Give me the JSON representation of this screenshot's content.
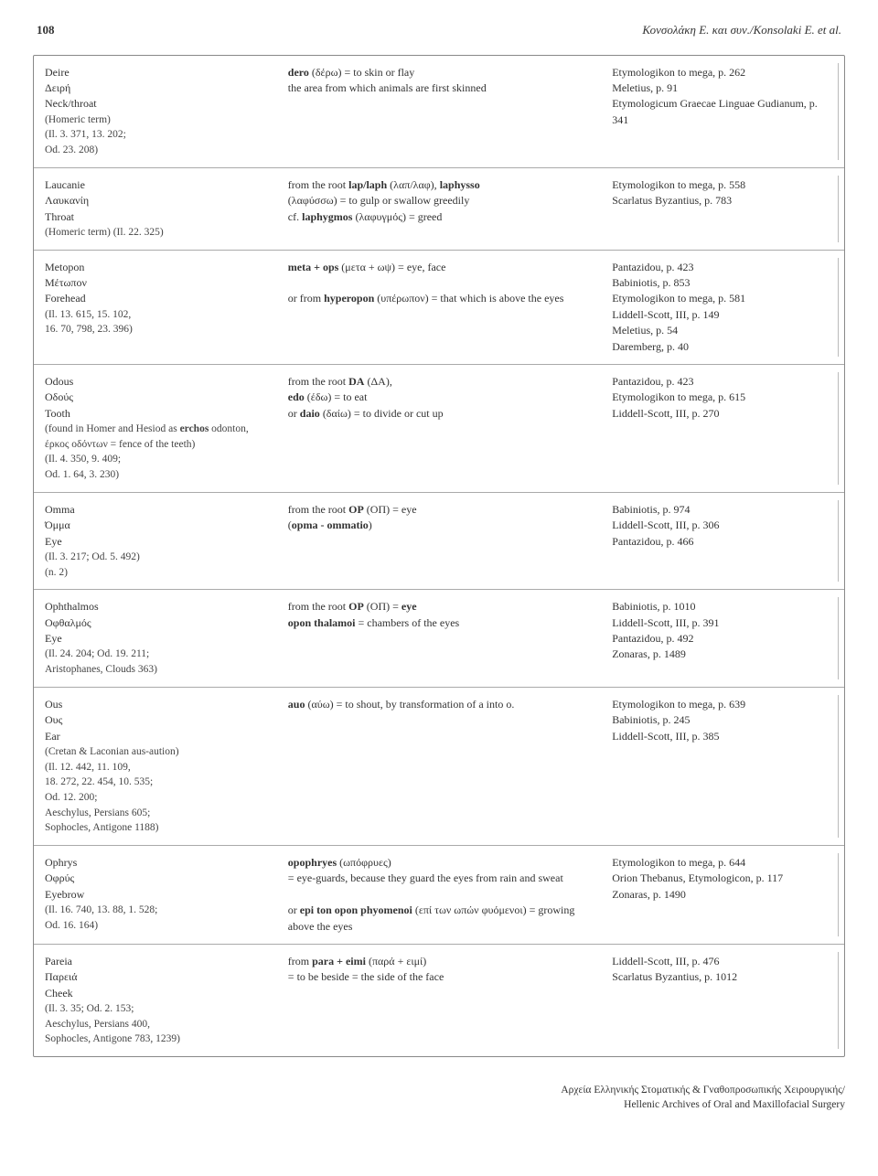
{
  "header": {
    "page_number": "108",
    "author_line": "Κονσολάκη E. και συν./Konsolaki E. et al."
  },
  "table": {
    "row_border_color": "#aaaaaa",
    "outer_border_color": "#888888",
    "font_family": "Georgia",
    "font_size_pt": 9,
    "col_widths_pct": [
      30,
      40,
      30
    ],
    "rows": [
      {
        "term_en": "Deire",
        "term_gr": "Δειρή",
        "gloss": "Neck/throat",
        "refs": "(Homeric term)\n(Il. 3. 371, 13. 202;\nOd. 23. 208)",
        "etym": "<b>dero</b> (δέρω) = to skin or flay\nthe area from which animals are first skinned",
        "sources": "Etymologikon to mega, p. 262\nMeletius, p. 91\nEtymologicum Graecae Linguae Gudianum, p. 341"
      },
      {
        "term_en": "Laucanie",
        "term_gr": "Λαυκανίη",
        "gloss": "Throat",
        "refs": "(Homeric term) (Il. 22. 325)",
        "etym": "from the root <b>lap/laph</b> (λαπ/λαφ), <b>laphysso</b>\n(λαφύσσω) = to gulp or swallow greedily\ncf. <b>laphygmos</b> (λαφυγμός) = greed",
        "sources": "Etymologikon to mega, p. 558\nScarlatus Byzantius, p. 783"
      },
      {
        "term_en": "Metopon",
        "term_gr": "Μέτωπον",
        "gloss": "Forehead",
        "refs": "(Il. 13. 615, 15. 102,\n16. 70, 798, 23. 396)",
        "etym": "<b>meta + ops</b> (μετα + ωψ) = eye, face\n\nor from <b>hyperopon</b> (υπέρωπον) = that which is above the eyes",
        "sources": "Pantazidou, p. 423\nBabiniotis, p. 853\nEtymologikon to mega, p. 581\nLiddell-Scott, III, p. 149\nMeletius, p. 54\nDaremberg, p. 40"
      },
      {
        "term_en": "Odous",
        "term_gr": "Οδούς",
        "gloss": "Tooth",
        "refs": "(found in Homer and Hesiod as <b>erchos</b> odonton, έρκος οδόντων = fence of the teeth)\n(Il. 4. 350, 9. 409;\nOd. 1. 64, 3. 230)",
        "etym": "from the root <b>DA</b> (ΔΑ),\n<b>edo</b> (έδω) = to eat\nor <b>daio</b> (δαίω) = to divide or cut up",
        "sources": "Pantazidou, p. 423\nEtymologikon to mega, p. 615\nLiddell-Scott, III, p. 270"
      },
      {
        "term_en": "Omma",
        "term_gr": "Όμμα",
        "gloss": "Eye",
        "refs": "(Il. 3. 217; Od. 5. 492)\n(n. 2)",
        "etym": "from the root <b>OP</b> (ΟΠ) = eye\n(<b>opma - ommatio</b>)",
        "sources": "Babiniotis, p. 974\nLiddell-Scott, III, p. 306\nPantazidou, p. 466"
      },
      {
        "term_en": "Ophthalmos",
        "term_gr": "Οφθαλμός",
        "gloss": "Eye",
        "refs": "(Il. 24. 204; Od. 19. 211;\nAristophanes, Clouds 363)",
        "etym": "from the root <b>OP</b> (ΟΠ) = <b>eye</b>\n<b>opon thalamoi</b> = chambers of the eyes",
        "sources": "Babiniotis, p. 1010\nLiddell-Scott, III, p. 391\nPantazidou, p. 492\nZonaras, p. 1489"
      },
      {
        "term_en": "Ous",
        "term_gr": "Ους",
        "gloss": "Ear",
        "refs": "(Cretan & Laconian aus-aution)\n(Il. 12. 442, 11. 109,\n18. 272, 22. 454, 10. 535;\nOd. 12. 200;\nAeschylus, Persians 605;\nSophocles, Antigone 1188)",
        "etym": "<b>auo</b> (αύω) = to shout, by transformation of a into o.",
        "sources": "Etymologikon to mega, p. 639\nBabiniotis, p. 245\nLiddell-Scott, III, p. 385"
      },
      {
        "term_en": "Ophrys",
        "term_gr": "Οφρύς",
        "gloss": "Eyebrow",
        "refs": "(Il. 16. 740, 13. 88, 1. 528;\nOd. 16. 164)",
        "etym": "<b>opophryes</b> (ωπόφρυες)\n= eye-guards, because they guard the eyes from rain and sweat\n\nor <b>epi ton opon phyomenoi</b> (επί των ωπών φυόμενοι) = growing above the eyes",
        "sources": "Etymologikon to mega, p. 644\nOrion Thebanus, Etymologicon, p. 117\nZonaras, p. 1490"
      },
      {
        "term_en": "Pareia",
        "term_gr": "Παρειά",
        "gloss": "Cheek",
        "refs": "(Il. 3. 35; Od. 2. 153;\nAeschylus, Persians 400,\nSophocles, Antigone 783, 1239)",
        "etym": "from <b>para + eimi</b> (παρά + ειμί)\n= to be beside = the side of the face",
        "sources": "Liddell-Scott, III, p. 476\nScarlatus Byzantius, p. 1012"
      }
    ]
  },
  "footer": {
    "line_gr": "Αρχεία Ελληνικής Στοματικής & Γναθοπροσωπικής Χειρουργικής/",
    "line_en": "Hellenic Archives of Oral and Maxillofacial Surgery"
  }
}
